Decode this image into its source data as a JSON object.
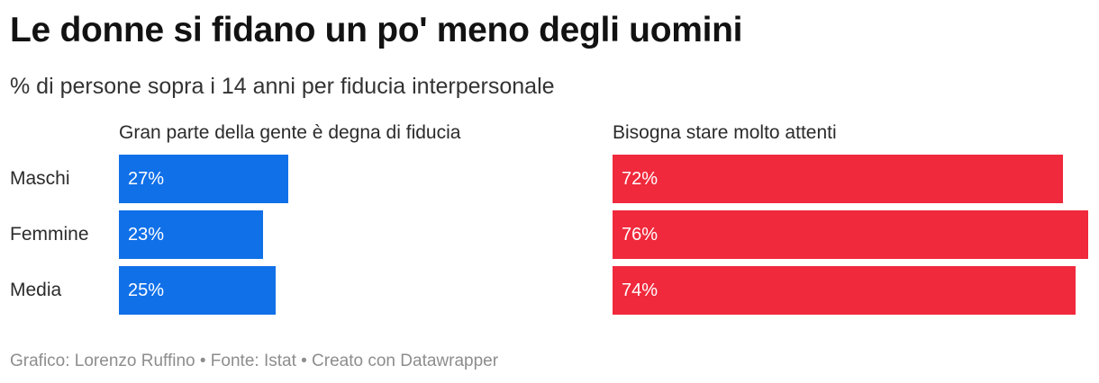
{
  "header": {
    "title": "Le donne si fidano un po' meno degli uomini",
    "subtitle": "% di persone sopra i 14 anni per fiducia interpersonale"
  },
  "footer": {
    "text": "Grafico: Lorenzo Ruffino • Fonte: Istat • Creato con Datawrapper"
  },
  "chart_data": {
    "type": "bar",
    "orientation": "horizontal",
    "layout": "split-panels",
    "unit": "%",
    "categories": [
      "Maschi",
      "Femmine",
      "Media"
    ],
    "xlim": [
      0,
      76
    ],
    "series": [
      {
        "name": "Gran parte della gente è degna di fiducia",
        "values": [
          27,
          23,
          25
        ],
        "labels": [
          "27%",
          "23%",
          "25%"
        ],
        "color": "#1070e8"
      },
      {
        "name": "Bisogna stare molto attenti",
        "values": [
          72,
          76,
          74
        ],
        "labels": [
          "72%",
          "76%",
          "74%"
        ],
        "color": "#f0293c"
      }
    ],
    "grid": false,
    "legend": "none"
  }
}
